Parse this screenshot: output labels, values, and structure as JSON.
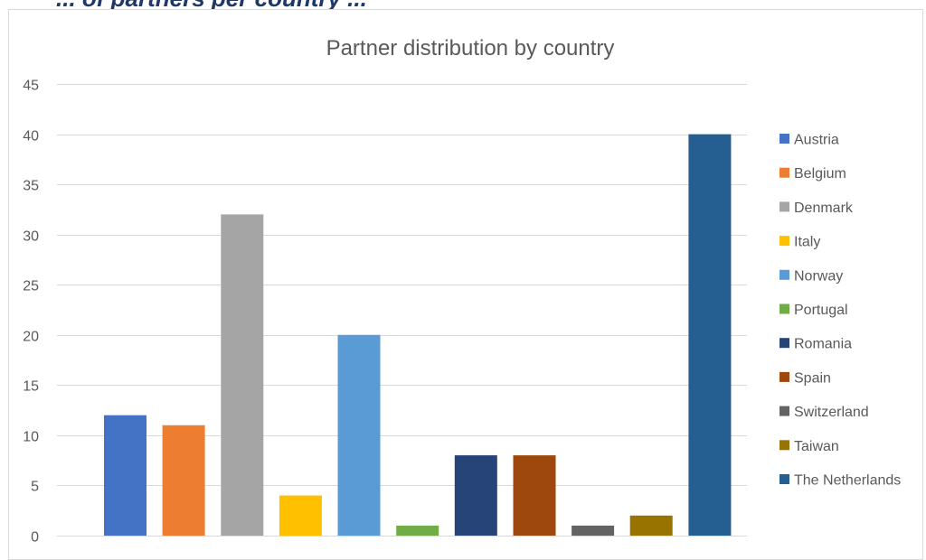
{
  "top_text": "... of partners per country ...",
  "chart_data": {
    "type": "bar",
    "title": "Partner distribution by country",
    "ylim": [
      0,
      45
    ],
    "yticks": [
      0,
      5,
      10,
      15,
      20,
      25,
      30,
      35,
      40,
      45
    ],
    "grid": true,
    "legend_position": "right",
    "series": [
      {
        "name": "Austria",
        "value": 12,
        "color": "#4472c4"
      },
      {
        "name": "Belgium",
        "value": 11,
        "color": "#ed7d31"
      },
      {
        "name": "Denmark",
        "value": 32,
        "color": "#a5a5a5"
      },
      {
        "name": "Italy",
        "value": 4,
        "color": "#ffc000"
      },
      {
        "name": "Norway",
        "value": 20,
        "color": "#5b9bd5"
      },
      {
        "name": "Portugal",
        "value": 1,
        "color": "#70ad47"
      },
      {
        "name": "Romania",
        "value": 8,
        "color": "#264478"
      },
      {
        "name": "Spain",
        "value": 8,
        "color": "#9e480e"
      },
      {
        "name": "Switzerland",
        "value": 1,
        "color": "#636363"
      },
      {
        "name": "Taiwan",
        "value": 2,
        "color": "#997300"
      },
      {
        "name": "The Netherlands",
        "value": 40,
        "color": "#255e91"
      }
    ]
  }
}
